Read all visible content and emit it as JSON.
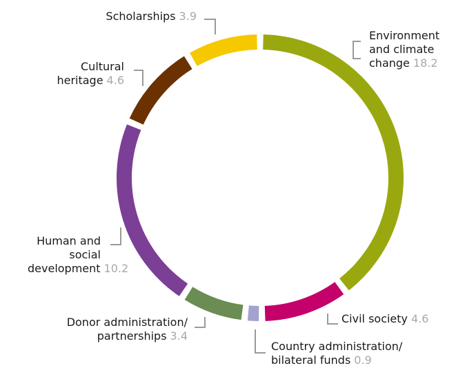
{
  "chart_data": {
    "type": "donut",
    "categories": [
      "Environment and climate change",
      "Civil society",
      "Country administration/ bilateral funds",
      "Donor administration/ partnerships",
      "Human and social development",
      "Cultural heritage",
      "Scholarships"
    ],
    "values": [
      18.2,
      4.6,
      0.9,
      3.4,
      10.2,
      4.6,
      3.9
    ],
    "colors": [
      "#9aa80f",
      "#c4006a",
      "#a3a3cf",
      "#6b8c52",
      "#7b3f96",
      "#6b3100",
      "#f5c800"
    ]
  }
}
